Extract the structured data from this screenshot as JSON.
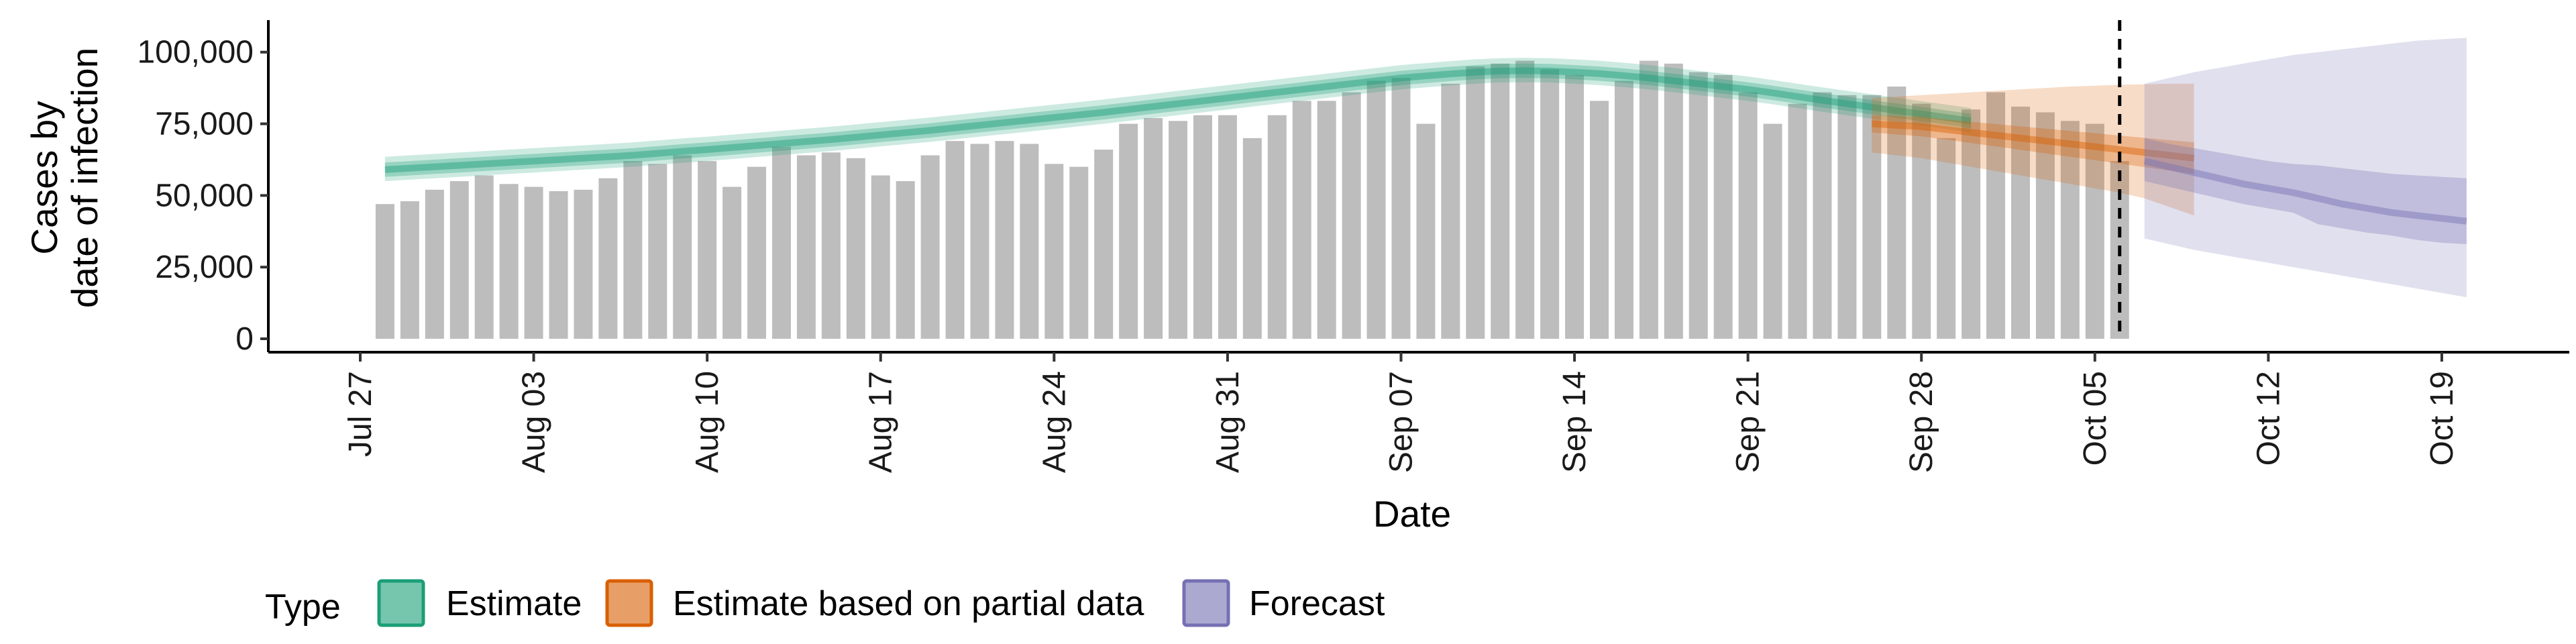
{
  "chart_data": {
    "type": "bar",
    "title": "",
    "xlabel": "Date",
    "ylabel_lines": [
      "Cases by",
      "date of infection"
    ],
    "ylim": [
      0,
      110000
    ],
    "y_ticks": [
      0,
      25000,
      50000,
      75000,
      100000
    ],
    "y_tick_labels": [
      "0",
      "25,000",
      "50,000",
      "75,000",
      "100,000"
    ],
    "x_ticks": [
      "2020-07-27",
      "2020-08-03",
      "2020-08-10",
      "2020-08-17",
      "2020-08-24",
      "2020-08-31",
      "2020-09-07",
      "2020-09-14",
      "2020-09-21",
      "2020-09-28",
      "2020-10-05",
      "2020-10-12",
      "2020-10-19"
    ],
    "x_tick_labels": [
      "Jul 27",
      "Aug 03",
      "Aug 10",
      "Aug 17",
      "Aug 24",
      "Aug 31",
      "Sep 07",
      "Sep 14",
      "Sep 21",
      "Sep 28",
      "Oct 05",
      "Oct 12",
      "Oct 19"
    ],
    "forecast_start_line": "2020-10-06",
    "bars": {
      "start_date": "2020-07-28",
      "values": [
        47000,
        48000,
        52000,
        55000,
        57000,
        54000,
        53000,
        51500,
        52000,
        56000,
        62000,
        61000,
        64000,
        62000,
        53000,
        60000,
        67000,
        64000,
        65000,
        63000,
        57000,
        55000,
        64000,
        69000,
        68000,
        69000,
        68000,
        61000,
        60000,
        66000,
        75000,
        77000,
        76000,
        78000,
        78000,
        70000,
        78000,
        83000,
        83000,
        86000,
        90000,
        91000,
        75000,
        89000,
        95000,
        96000,
        97000,
        94000,
        92000,
        83000,
        90000,
        97000,
        96000,
        93000,
        92000,
        86000,
        75000,
        82000,
        86000,
        85000,
        85000,
        88000,
        82000,
        70000,
        80000,
        86000,
        81000,
        79000,
        76000,
        75000,
        62000
      ]
    },
    "series": [
      {
        "name": "Estimate",
        "color": "#1b9e77",
        "start_date": "2020-07-28",
        "median": [
          59000,
          59500,
          60000,
          60500,
          61000,
          61500,
          62000,
          62500,
          63000,
          63500,
          64000,
          64700,
          65400,
          66000,
          66700,
          67400,
          68100,
          68800,
          69500,
          70300,
          71100,
          71900,
          72700,
          73600,
          74500,
          75400,
          76300,
          77200,
          78100,
          79000,
          80000,
          81000,
          82000,
          83000,
          84000,
          85000,
          86000,
          87000,
          88000,
          89000,
          90000,
          91000,
          91700,
          92400,
          93000,
          93400,
          93500,
          93400,
          93000,
          92500,
          91800,
          91000,
          90000,
          89000,
          88000,
          87000,
          85800,
          84500,
          83200,
          82000,
          80800,
          79600,
          78400,
          77200,
          76000
        ],
        "ci50": [
          [
            56500,
            61500
          ],
          [
            57000,
            62000
          ],
          [
            57500,
            62500
          ],
          [
            58000,
            63000
          ],
          [
            58500,
            63500
          ],
          [
            59000,
            64000
          ],
          [
            59500,
            64500
          ],
          [
            60000,
            65000
          ],
          [
            60500,
            65500
          ],
          [
            61000,
            66000
          ],
          [
            61500,
            66500
          ],
          [
            62200,
            67200
          ],
          [
            62900,
            67900
          ],
          [
            63500,
            68500
          ],
          [
            64200,
            69200
          ],
          [
            64900,
            69900
          ],
          [
            65600,
            70600
          ],
          [
            66300,
            71300
          ],
          [
            67000,
            72000
          ],
          [
            67800,
            72800
          ],
          [
            68600,
            73600
          ],
          [
            69400,
            74400
          ],
          [
            70200,
            75200
          ],
          [
            71100,
            76100
          ],
          [
            72000,
            77000
          ],
          [
            72900,
            77900
          ],
          [
            73800,
            78800
          ],
          [
            74700,
            79700
          ],
          [
            75600,
            80600
          ],
          [
            76500,
            81500
          ],
          [
            77500,
            82500
          ],
          [
            78500,
            83500
          ],
          [
            79500,
            84500
          ],
          [
            80500,
            85500
          ],
          [
            81500,
            86500
          ],
          [
            82500,
            87500
          ],
          [
            83500,
            88500
          ],
          [
            84500,
            89500
          ],
          [
            85500,
            90500
          ],
          [
            86500,
            91500
          ],
          [
            87500,
            92500
          ],
          [
            88500,
            93500
          ],
          [
            89200,
            94200
          ],
          [
            89900,
            94900
          ],
          [
            90500,
            95500
          ],
          [
            90900,
            95900
          ],
          [
            91000,
            96000
          ],
          [
            90900,
            95900
          ],
          [
            90500,
            95500
          ],
          [
            90000,
            95000
          ],
          [
            89300,
            94300
          ],
          [
            88500,
            93500
          ],
          [
            87500,
            92500
          ],
          [
            86500,
            91500
          ],
          [
            85500,
            90500
          ],
          [
            84500,
            89500
          ],
          [
            83300,
            88300
          ],
          [
            82000,
            87000
          ],
          [
            80700,
            85700
          ],
          [
            79500,
            84500
          ],
          [
            78300,
            83300
          ],
          [
            77100,
            82100
          ],
          [
            75900,
            80900
          ],
          [
            74700,
            79700
          ],
          [
            73500,
            78500
          ]
        ],
        "ci90": [
          [
            55000,
            63500
          ],
          [
            55500,
            64000
          ],
          [
            56000,
            64500
          ],
          [
            56500,
            65000
          ],
          [
            57000,
            65500
          ],
          [
            57500,
            66000
          ],
          [
            58000,
            66500
          ],
          [
            58500,
            67000
          ],
          [
            59000,
            67500
          ],
          [
            59500,
            68000
          ],
          [
            60000,
            68500
          ],
          [
            60700,
            69200
          ],
          [
            61400,
            69900
          ],
          [
            62000,
            70500
          ],
          [
            62700,
            71200
          ],
          [
            63400,
            71900
          ],
          [
            64100,
            72600
          ],
          [
            64800,
            73300
          ],
          [
            65500,
            74000
          ],
          [
            66300,
            74800
          ],
          [
            67100,
            75600
          ],
          [
            67900,
            76400
          ],
          [
            68700,
            77200
          ],
          [
            69600,
            78100
          ],
          [
            70500,
            79000
          ],
          [
            71400,
            79900
          ],
          [
            72300,
            80800
          ],
          [
            73200,
            81700
          ],
          [
            74100,
            82600
          ],
          [
            75000,
            83500
          ],
          [
            76000,
            84500
          ],
          [
            77000,
            85500
          ],
          [
            78000,
            86500
          ],
          [
            79000,
            87500
          ],
          [
            80000,
            88500
          ],
          [
            81000,
            89500
          ],
          [
            82000,
            90500
          ],
          [
            83000,
            91500
          ],
          [
            84000,
            92500
          ],
          [
            85000,
            93500
          ],
          [
            86000,
            94500
          ],
          [
            87000,
            95500
          ],
          [
            87700,
            96200
          ],
          [
            88400,
            96900
          ],
          [
            89000,
            97500
          ],
          [
            89400,
            97900
          ],
          [
            89500,
            98000
          ],
          [
            89400,
            97900
          ],
          [
            89000,
            97500
          ],
          [
            88500,
            97000
          ],
          [
            87800,
            96300
          ],
          [
            87000,
            95500
          ],
          [
            86000,
            94500
          ],
          [
            85000,
            93500
          ],
          [
            84000,
            92500
          ],
          [
            83000,
            91500
          ],
          [
            81800,
            90300
          ],
          [
            80500,
            89000
          ],
          [
            79200,
            87700
          ],
          [
            78000,
            86500
          ],
          [
            76800,
            85300
          ],
          [
            75600,
            84100
          ],
          [
            74400,
            82900
          ],
          [
            73200,
            81700
          ],
          [
            72000,
            80500
          ]
        ]
      },
      {
        "name": "Estimate based on partial data",
        "color": "#d95f02",
        "start_date": "2020-09-26",
        "median": [
          75000,
          74500,
          74000,
          73000,
          72000,
          71000,
          70000,
          69000,
          68000,
          67000,
          66000,
          65000,
          64000,
          63000
        ],
        "ci50": [
          [
            72000,
            78000
          ],
          [
            71300,
            77700
          ],
          [
            70600,
            77400
          ],
          [
            69500,
            76500
          ],
          [
            68300,
            75700
          ],
          [
            67100,
            74900
          ],
          [
            65900,
            74100
          ],
          [
            64700,
            73300
          ],
          [
            63500,
            72500
          ],
          [
            62300,
            71700
          ],
          [
            61100,
            70900
          ],
          [
            59900,
            70100
          ],
          [
            58700,
            69300
          ],
          [
            57500,
            68500
          ]
        ],
        "ci90": [
          [
            65000,
            84000
          ],
          [
            64000,
            84500
          ],
          [
            63000,
            85000
          ],
          [
            61500,
            85500
          ],
          [
            60000,
            86000
          ],
          [
            58500,
            86500
          ],
          [
            57000,
            87000
          ],
          [
            55500,
            87500
          ],
          [
            54000,
            88000
          ],
          [
            52500,
            88300
          ],
          [
            51000,
            88600
          ],
          [
            49000,
            88800
          ],
          [
            46000,
            89000
          ],
          [
            43000,
            89000
          ]
        ]
      },
      {
        "name": "Forecast",
        "color": "#7570b3",
        "start_date": "2020-10-07",
        "median": [
          62000,
          60000,
          58000,
          56000,
          54000,
          52500,
          51000,
          49000,
          47000,
          45500,
          44000,
          43000,
          42000,
          41000
        ],
        "ci50": [
          [
            55000,
            70000
          ],
          [
            53000,
            68000
          ],
          [
            51000,
            66500
          ],
          [
            49000,
            65000
          ],
          [
            47000,
            63500
          ],
          [
            45500,
            62000
          ],
          [
            44000,
            61000
          ],
          [
            40000,
            60500
          ],
          [
            38500,
            59500
          ],
          [
            37000,
            58500
          ],
          [
            36000,
            57500
          ],
          [
            34500,
            57000
          ],
          [
            33500,
            56500
          ],
          [
            33000,
            56000
          ]
        ],
        "ci90": [
          [
            35000,
            89000
          ],
          [
            33000,
            91000
          ],
          [
            31000,
            93000
          ],
          [
            29500,
            94500
          ],
          [
            28000,
            96000
          ],
          [
            26500,
            97500
          ],
          [
            25000,
            99000
          ],
          [
            23500,
            100000
          ],
          [
            22000,
            101000
          ],
          [
            20500,
            102000
          ],
          [
            19000,
            103000
          ],
          [
            17500,
            104000
          ],
          [
            16000,
            104500
          ],
          [
            14500,
            105000
          ]
        ]
      }
    ],
    "legend": {
      "title": "Type",
      "position": "bottom",
      "items": [
        "Estimate",
        "Estimate based on partial data",
        "Forecast"
      ]
    },
    "grid": false
  }
}
